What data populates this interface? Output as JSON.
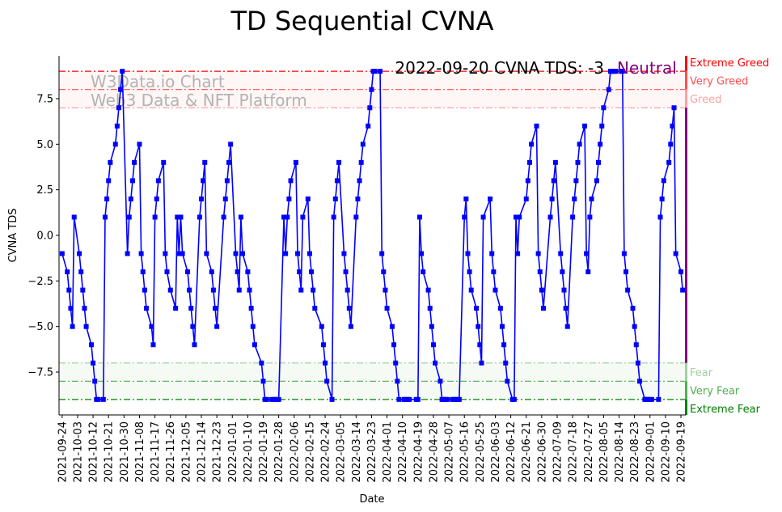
{
  "chart_data": {
    "type": "line",
    "title": "TD Sequential CVNA",
    "xlabel": "Date",
    "ylabel": "CVNA TDS",
    "ylim": [
      -9.85,
      9.85
    ],
    "yticks": [
      -7.5,
      -5.0,
      -2.5,
      0.0,
      2.5,
      5.0,
      7.5
    ],
    "ytick_labels": [
      "−7.5",
      "−5.0",
      "−2.5",
      "0.0",
      "2.5",
      "5.0",
      "7.5"
    ],
    "x_date_range": [
      "2021-09-24",
      "2022-09-20"
    ],
    "xtick_labels": [
      "2021-09-24",
      "2021-10-03",
      "2021-10-12",
      "2021-10-21",
      "2021-10-30",
      "2021-11-08",
      "2021-11-17",
      "2021-11-26",
      "2021-12-05",
      "2021-12-14",
      "2021-12-23",
      "2022-01-01",
      "2022-01-10",
      "2022-01-19",
      "2022-01-28",
      "2022-02-06",
      "2022-02-15",
      "2022-02-24",
      "2022-03-05",
      "2022-03-14",
      "2022-03-23",
      "2022-04-01",
      "2022-04-10",
      "2022-04-19",
      "2022-04-28",
      "2022-05-07",
      "2022-05-16",
      "2022-05-25",
      "2022-06-03",
      "2022-06-12",
      "2022-06-21",
      "2022-06-30",
      "2022-07-09",
      "2022-07-18",
      "2022-07-27",
      "2022-08-05",
      "2022-08-14",
      "2022-08-23",
      "2022-09-01",
      "2022-09-10",
      "2022-09-19"
    ],
    "annotation": "2022-09-20 CVNA TDS: -3",
    "status_label": "Neutral",
    "watermark_line1": "W3Data.io Chart",
    "watermark_line2": "Web3 Data & NFT Platform",
    "thresholds": [
      {
        "label": "Extreme Greed",
        "value": 9,
        "color": "#ff0000"
      },
      {
        "label": "Very Greed",
        "value": 8,
        "color": "#ff5050"
      },
      {
        "label": "Greed",
        "value": 7,
        "color": "#ffa0a0"
      },
      {
        "label": "Fear",
        "value": -7,
        "color": "#a0d0a0"
      },
      {
        "label": "Very Fear",
        "value": -8,
        "color": "#50b050"
      },
      {
        "label": "Extreme Fear",
        "value": -9,
        "color": "#008000"
      }
    ],
    "series": [
      {
        "name": "CVNA TDS",
        "color": "#0000ff",
        "points": [
          [
            "2021-09-24",
            -1
          ],
          [
            "2021-09-27",
            -2
          ],
          [
            "2021-09-28",
            -3
          ],
          [
            "2021-09-29",
            -4
          ],
          [
            "2021-09-30",
            -5
          ],
          [
            "2021-10-01",
            1
          ],
          [
            "2021-10-04",
            -1
          ],
          [
            "2021-10-05",
            -2
          ],
          [
            "2021-10-06",
            -3
          ],
          [
            "2021-10-07",
            -4
          ],
          [
            "2021-10-08",
            -5
          ],
          [
            "2021-10-11",
            -6
          ],
          [
            "2021-10-12",
            -7
          ],
          [
            "2021-10-13",
            -8
          ],
          [
            "2021-10-14",
            -9
          ],
          [
            "2021-10-15",
            -9
          ],
          [
            "2021-10-18",
            -9
          ],
          [
            "2021-10-19",
            1
          ],
          [
            "2021-10-20",
            2
          ],
          [
            "2021-10-21",
            3
          ],
          [
            "2021-10-22",
            4
          ],
          [
            "2021-10-25",
            5
          ],
          [
            "2021-10-26",
            6
          ],
          [
            "2021-10-27",
            7
          ],
          [
            "2021-10-28",
            8
          ],
          [
            "2021-10-29",
            9
          ],
          [
            "2021-11-01",
            -1
          ],
          [
            "2021-11-02",
            1
          ],
          [
            "2021-11-03",
            2
          ],
          [
            "2021-11-04",
            3
          ],
          [
            "2021-11-05",
            4
          ],
          [
            "2021-11-08",
            5
          ],
          [
            "2021-11-09",
            -1
          ],
          [
            "2021-11-10",
            -2
          ],
          [
            "2021-11-11",
            -3
          ],
          [
            "2021-11-12",
            -4
          ],
          [
            "2021-11-15",
            -5
          ],
          [
            "2021-11-16",
            -6
          ],
          [
            "2021-11-17",
            1
          ],
          [
            "2021-11-18",
            2
          ],
          [
            "2021-11-19",
            3
          ],
          [
            "2021-11-22",
            4
          ],
          [
            "2021-11-23",
            -1
          ],
          [
            "2021-11-24",
            -2
          ],
          [
            "2021-11-26",
            -3
          ],
          [
            "2021-11-29",
            -4
          ],
          [
            "2021-11-30",
            1
          ],
          [
            "2021-12-01",
            -1
          ],
          [
            "2021-12-02",
            1
          ],
          [
            "2021-12-03",
            -1
          ],
          [
            "2021-12-06",
            -2
          ],
          [
            "2021-12-07",
            -3
          ],
          [
            "2021-12-08",
            -4
          ],
          [
            "2021-12-09",
            -5
          ],
          [
            "2021-12-10",
            -6
          ],
          [
            "2021-12-13",
            1
          ],
          [
            "2021-12-14",
            2
          ],
          [
            "2021-12-15",
            3
          ],
          [
            "2021-12-16",
            4
          ],
          [
            "2021-12-17",
            -1
          ],
          [
            "2021-12-20",
            -2
          ],
          [
            "2021-12-21",
            -3
          ],
          [
            "2021-12-22",
            -4
          ],
          [
            "2021-12-23",
            -5
          ],
          [
            "2021-12-27",
            1
          ],
          [
            "2021-12-28",
            2
          ],
          [
            "2021-12-29",
            3
          ],
          [
            "2021-12-30",
            4
          ],
          [
            "2021-12-31",
            5
          ],
          [
            "2022-01-03",
            -1
          ],
          [
            "2022-01-04",
            -2
          ],
          [
            "2022-01-05",
            -3
          ],
          [
            "2022-01-06",
            1
          ],
          [
            "2022-01-07",
            -1
          ],
          [
            "2022-01-10",
            -2
          ],
          [
            "2022-01-11",
            -3
          ],
          [
            "2022-01-12",
            -4
          ],
          [
            "2022-01-13",
            -5
          ],
          [
            "2022-01-14",
            -6
          ],
          [
            "2022-01-18",
            -7
          ],
          [
            "2022-01-19",
            -8
          ],
          [
            "2022-01-20",
            -9
          ],
          [
            "2022-01-21",
            -9
          ],
          [
            "2022-01-24",
            -9
          ],
          [
            "2022-01-25",
            -9
          ],
          [
            "2022-01-26",
            -9
          ],
          [
            "2022-01-27",
            -9
          ],
          [
            "2022-01-28",
            -9
          ],
          [
            "2022-01-31",
            1
          ],
          [
            "2022-02-01",
            -1
          ],
          [
            "2022-02-02",
            1
          ],
          [
            "2022-02-03",
            2
          ],
          [
            "2022-02-04",
            3
          ],
          [
            "2022-02-07",
            4
          ],
          [
            "2022-02-08",
            -1
          ],
          [
            "2022-02-09",
            -2
          ],
          [
            "2022-02-10",
            -3
          ],
          [
            "2022-02-11",
            1
          ],
          [
            "2022-02-14",
            2
          ],
          [
            "2022-02-15",
            -1
          ],
          [
            "2022-02-16",
            -2
          ],
          [
            "2022-02-17",
            -3
          ],
          [
            "2022-02-18",
            -4
          ],
          [
            "2022-02-22",
            -5
          ],
          [
            "2022-02-23",
            -6
          ],
          [
            "2022-02-24",
            -7
          ],
          [
            "2022-02-25",
            -8
          ],
          [
            "2022-02-28",
            -9
          ],
          [
            "2022-03-01",
            1
          ],
          [
            "2022-03-02",
            2
          ],
          [
            "2022-03-03",
            3
          ],
          [
            "2022-03-04",
            4
          ],
          [
            "2022-03-07",
            -1
          ],
          [
            "2022-03-08",
            -2
          ],
          [
            "2022-03-09",
            -3
          ],
          [
            "2022-03-10",
            -4
          ],
          [
            "2022-03-11",
            -5
          ],
          [
            "2022-03-14",
            1
          ],
          [
            "2022-03-15",
            2
          ],
          [
            "2022-03-16",
            3
          ],
          [
            "2022-03-17",
            4
          ],
          [
            "2022-03-18",
            5
          ],
          [
            "2022-03-21",
            6
          ],
          [
            "2022-03-22",
            7
          ],
          [
            "2022-03-23",
            8
          ],
          [
            "2022-03-24",
            9
          ],
          [
            "2022-03-25",
            9
          ],
          [
            "2022-03-28",
            9
          ],
          [
            "2022-03-29",
            -1
          ],
          [
            "2022-03-30",
            -2
          ],
          [
            "2022-03-31",
            -3
          ],
          [
            "2022-04-01",
            -4
          ],
          [
            "2022-04-04",
            -5
          ],
          [
            "2022-04-05",
            -6
          ],
          [
            "2022-04-06",
            -7
          ],
          [
            "2022-04-07",
            -8
          ],
          [
            "2022-04-08",
            -9
          ],
          [
            "2022-04-11",
            -9
          ],
          [
            "2022-04-12",
            -9
          ],
          [
            "2022-04-13",
            -9
          ],
          [
            "2022-04-14",
            -9
          ],
          [
            "2022-04-18",
            -9
          ],
          [
            "2022-04-19",
            -9
          ],
          [
            "2022-04-20",
            1
          ],
          [
            "2022-04-21",
            -1
          ],
          [
            "2022-04-22",
            -2
          ],
          [
            "2022-04-25",
            -3
          ],
          [
            "2022-04-26",
            -4
          ],
          [
            "2022-04-27",
            -5
          ],
          [
            "2022-04-28",
            -6
          ],
          [
            "2022-04-29",
            -7
          ],
          [
            "2022-05-02",
            -8
          ],
          [
            "2022-05-03",
            -9
          ],
          [
            "2022-05-04",
            -9
          ],
          [
            "2022-05-05",
            -9
          ],
          [
            "2022-05-06",
            -9
          ],
          [
            "2022-05-09",
            -9
          ],
          [
            "2022-05-10",
            -9
          ],
          [
            "2022-05-11",
            -9
          ],
          [
            "2022-05-12",
            -9
          ],
          [
            "2022-05-13",
            -9
          ],
          [
            "2022-05-16",
            1
          ],
          [
            "2022-05-17",
            2
          ],
          [
            "2022-05-18",
            -1
          ],
          [
            "2022-05-19",
            -2
          ],
          [
            "2022-05-20",
            -3
          ],
          [
            "2022-05-23",
            -4
          ],
          [
            "2022-05-24",
            -5
          ],
          [
            "2022-05-25",
            -6
          ],
          [
            "2022-05-26",
            -7
          ],
          [
            "2022-05-27",
            1
          ],
          [
            "2022-05-31",
            2
          ],
          [
            "2022-06-01",
            -1
          ],
          [
            "2022-06-02",
            -2
          ],
          [
            "2022-06-03",
            -3
          ],
          [
            "2022-06-06",
            -4
          ],
          [
            "2022-06-07",
            -5
          ],
          [
            "2022-06-08",
            -6
          ],
          [
            "2022-06-09",
            -7
          ],
          [
            "2022-06-10",
            -8
          ],
          [
            "2022-06-13",
            -9
          ],
          [
            "2022-06-14",
            -9
          ],
          [
            "2022-06-15",
            1
          ],
          [
            "2022-06-16",
            -1
          ],
          [
            "2022-06-17",
            1
          ],
          [
            "2022-06-21",
            2
          ],
          [
            "2022-06-22",
            3
          ],
          [
            "2022-06-23",
            4
          ],
          [
            "2022-06-24",
            5
          ],
          [
            "2022-06-27",
            6
          ],
          [
            "2022-06-28",
            -1
          ],
          [
            "2022-06-29",
            -2
          ],
          [
            "2022-06-30",
            -3
          ],
          [
            "2022-07-01",
            -4
          ],
          [
            "2022-07-05",
            1
          ],
          [
            "2022-07-06",
            2
          ],
          [
            "2022-07-07",
            3
          ],
          [
            "2022-07-08",
            4
          ],
          [
            "2022-07-11",
            -1
          ],
          [
            "2022-07-12",
            -2
          ],
          [
            "2022-07-13",
            -3
          ],
          [
            "2022-07-14",
            -4
          ],
          [
            "2022-07-15",
            -5
          ],
          [
            "2022-07-18",
            1
          ],
          [
            "2022-07-19",
            2
          ],
          [
            "2022-07-20",
            3
          ],
          [
            "2022-07-21",
            4
          ],
          [
            "2022-07-22",
            5
          ],
          [
            "2022-07-25",
            6
          ],
          [
            "2022-07-26",
            -1
          ],
          [
            "2022-07-27",
            -2
          ],
          [
            "2022-07-28",
            1
          ],
          [
            "2022-07-29",
            2
          ],
          [
            "2022-08-01",
            3
          ],
          [
            "2022-08-02",
            4
          ],
          [
            "2022-08-03",
            5
          ],
          [
            "2022-08-04",
            6
          ],
          [
            "2022-08-05",
            7
          ],
          [
            "2022-08-08",
            8
          ],
          [
            "2022-08-09",
            9
          ],
          [
            "2022-08-10",
            9
          ],
          [
            "2022-08-11",
            9
          ],
          [
            "2022-08-12",
            9
          ],
          [
            "2022-08-15",
            9
          ],
          [
            "2022-08-16",
            9
          ],
          [
            "2022-08-17",
            -1
          ],
          [
            "2022-08-18",
            -2
          ],
          [
            "2022-08-19",
            -3
          ],
          [
            "2022-08-22",
            -4
          ],
          [
            "2022-08-23",
            -5
          ],
          [
            "2022-08-24",
            -6
          ],
          [
            "2022-08-25",
            -7
          ],
          [
            "2022-08-26",
            -8
          ],
          [
            "2022-08-29",
            -9
          ],
          [
            "2022-08-30",
            -9
          ],
          [
            "2022-08-31",
            -9
          ],
          [
            "2022-09-01",
            -9
          ],
          [
            "2022-09-02",
            -9
          ],
          [
            "2022-09-06",
            -9
          ],
          [
            "2022-09-07",
            1
          ],
          [
            "2022-09-08",
            2
          ],
          [
            "2022-09-09",
            3
          ],
          [
            "2022-09-12",
            4
          ],
          [
            "2022-09-13",
            5
          ],
          [
            "2022-09-14",
            6
          ],
          [
            "2022-09-15",
            7
          ],
          [
            "2022-09-16",
            -1
          ],
          [
            "2022-09-19",
            -2
          ],
          [
            "2022-09-20",
            -3
          ]
        ]
      }
    ]
  }
}
